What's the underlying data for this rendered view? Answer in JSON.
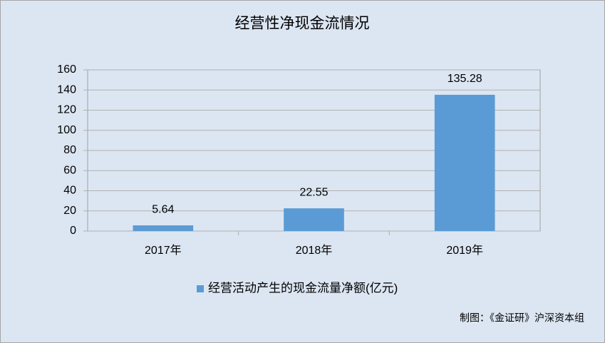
{
  "chart_data": {
    "type": "bar",
    "title": "经营性净现金流情况",
    "categories": [
      "2017年",
      "2018年",
      "2019年"
    ],
    "series": [
      {
        "name": "经营活动产生的现金流量净额(亿元)",
        "color": "#5b9bd5",
        "values": [
          5.64,
          22.55,
          135.28
        ]
      }
    ],
    "ylim": [
      0,
      160
    ],
    "yticks": [
      0,
      20,
      40,
      60,
      80,
      100,
      120,
      140,
      160
    ],
    "grid": true,
    "source": "制图：《金证研》沪深资本组"
  }
}
